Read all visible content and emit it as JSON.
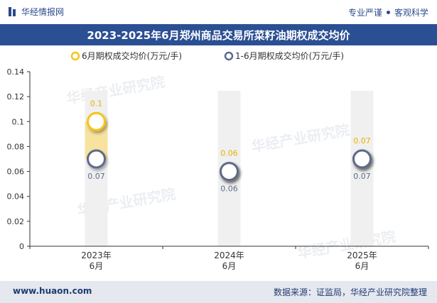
{
  "header": {
    "brand": "华经情报网",
    "tagline_left": "专业严谨",
    "tagline_right": "客观科学"
  },
  "footer": {
    "url": "www.huaon.com",
    "source": "数据来源：证监局，华经产业研究院整理"
  },
  "watermark": "华经产业研究院",
  "colors": {
    "series1": "#f5c518",
    "series2": "#5b6b8c",
    "band": "#f0f0f0",
    "title_bg": "#2b4f93"
  },
  "chart_data": {
    "type": "scatter",
    "title": "2023-2025年6月郑州商品交易所菜籽油期权成交均价",
    "categories": [
      "2023年\n6月",
      "2024年\n6月",
      "2025年\n6月"
    ],
    "series": [
      {
        "name": "6月期权成交均价(万元/手)",
        "values": [
          0.1,
          0.06,
          0.07
        ],
        "labels": [
          "0.1",
          "0.06",
          "0.07"
        ]
      },
      {
        "name": "1-6月期权成交均价(万元/手)",
        "values": [
          0.07,
          0.06,
          0.07
        ],
        "labels": [
          "0.07",
          "0.06",
          "0.07"
        ]
      }
    ],
    "ylim": [
      0,
      0.14
    ],
    "yticks": [
      "0",
      "0.02",
      "0.04",
      "0.06",
      "0.08",
      "0.1",
      "0.12",
      "0.14"
    ],
    "xlabel": "",
    "ylabel": ""
  }
}
